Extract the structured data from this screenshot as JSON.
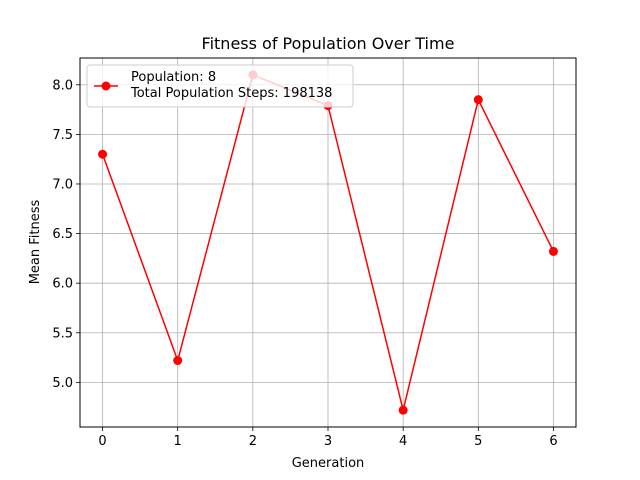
{
  "chart_data": {
    "type": "line",
    "title": "Fitness of Population Over Time",
    "xlabel": "Generation",
    "ylabel": "Mean Fitness",
    "x": [
      0,
      1,
      2,
      3,
      4,
      5,
      6
    ],
    "xlim": [
      -0.3,
      6.3
    ],
    "ylim": [
      4.55,
      8.27
    ],
    "x_ticks": [
      0,
      1,
      2,
      3,
      4,
      5,
      6
    ],
    "y_ticks": [
      "5.0",
      "5.5",
      "6.0",
      "6.5",
      "7.0",
      "7.5",
      "8.0"
    ],
    "grid": true,
    "legend_position": "upper-left",
    "legend_lines": [
      "Population: 8",
      "Total Population Steps: 198138"
    ],
    "series": [
      {
        "values": [
          7.3,
          5.22,
          8.1,
          7.79,
          4.72,
          7.85,
          6.32
        ],
        "color": "#ff0000",
        "marker": "circle"
      }
    ]
  }
}
